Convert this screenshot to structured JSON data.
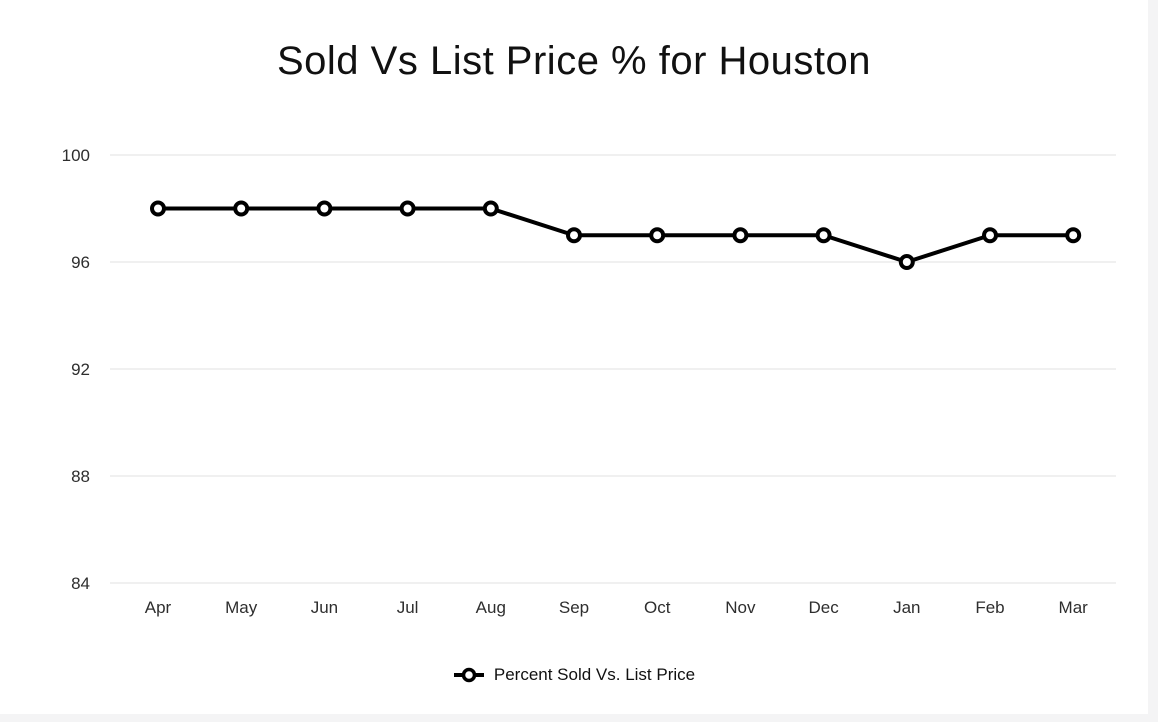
{
  "page": {
    "background_color": "#f4f4f5",
    "card_color": "#ffffff"
  },
  "chart_data": {
    "type": "line",
    "title": "Sold Vs List Price % for Houston",
    "categories": [
      "Apr",
      "May",
      "Jun",
      "Jul",
      "Aug",
      "Sep",
      "Oct",
      "Nov",
      "Dec",
      "Jan",
      "Feb",
      "Mar"
    ],
    "series": [
      {
        "name": "Percent Sold Vs. List Price",
        "values": [
          98,
          98,
          98,
          98,
          98,
          97,
          97,
          97,
          97,
          96,
          97,
          97
        ]
      }
    ],
    "xlabel": "",
    "ylabel": "",
    "y_ticks": [
      100,
      96,
      92,
      88,
      84
    ],
    "ylim": [
      84,
      100
    ],
    "grid": "horizontal-only",
    "legend_position": "bottom",
    "legend_marker_icon": "open-circle-on-line-icon",
    "marker_style": "open-circle",
    "colors": {
      "line": "#000000",
      "marker_fill": "#ffffff",
      "grid_line": "#f0f0f0",
      "axis_label": "#2e2e2e",
      "title": "#111111"
    }
  }
}
